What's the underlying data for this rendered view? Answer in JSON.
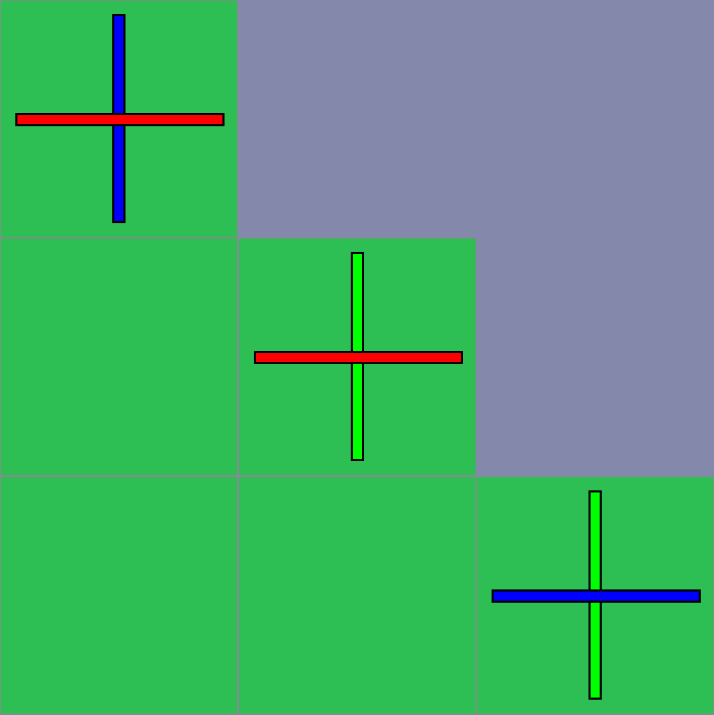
{
  "board": {
    "rows": 3,
    "cols": 3,
    "background_color": "#8488ab",
    "tile_color": "#2dbf53",
    "grid_line_color": "#8a8a8a",
    "cells": [
      {
        "row": 0,
        "col": 0,
        "filled": true,
        "cross": {
          "vertical_color": "#0000ff",
          "horizontal_color": "#ff0000",
          "front": "horizontal"
        }
      },
      {
        "row": 0,
        "col": 1,
        "filled": false,
        "cross": null
      },
      {
        "row": 0,
        "col": 2,
        "filled": false,
        "cross": null
      },
      {
        "row": 1,
        "col": 0,
        "filled": true,
        "cross": null
      },
      {
        "row": 1,
        "col": 1,
        "filled": true,
        "cross": {
          "vertical_color": "#00ff00",
          "horizontal_color": "#ff0000",
          "front": "horizontal"
        }
      },
      {
        "row": 1,
        "col": 2,
        "filled": false,
        "cross": null
      },
      {
        "row": 2,
        "col": 0,
        "filled": true,
        "cross": null
      },
      {
        "row": 2,
        "col": 1,
        "filled": true,
        "cross": null
      },
      {
        "row": 2,
        "col": 2,
        "filled": true,
        "cross": {
          "vertical_color": "#00ff00",
          "horizontal_color": "#0000ff",
          "front": "horizontal"
        }
      }
    ]
  }
}
